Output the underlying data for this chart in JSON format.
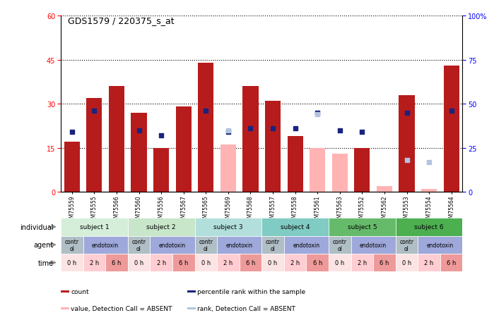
{
  "title": "GDS1579 / 220375_s_at",
  "samples": [
    "GSM75559",
    "GSM75555",
    "GSM75566",
    "GSM75560",
    "GSM75556",
    "GSM75567",
    "GSM75565",
    "GSM75569",
    "GSM75568",
    "GSM75557",
    "GSM75558",
    "GSM75561",
    "GSM75563",
    "GSM75552",
    "GSM75562",
    "GSM75553",
    "GSM75554",
    "GSM75564"
  ],
  "bar_values": [
    17,
    32,
    36,
    27,
    15,
    29,
    44,
    null,
    36,
    31,
    19,
    null,
    null,
    15,
    null,
    33,
    null,
    43
  ],
  "bar_values_absent": [
    null,
    null,
    null,
    null,
    null,
    null,
    null,
    16,
    null,
    null,
    null,
    15,
    13,
    null,
    2,
    null,
    1,
    null
  ],
  "dot_values": [
    34,
    46,
    null,
    35,
    32,
    null,
    46,
    34,
    36,
    36,
    36,
    45,
    35,
    34,
    null,
    45,
    null,
    46
  ],
  "rank_absent": [
    null,
    null,
    null,
    null,
    null,
    null,
    null,
    35,
    null,
    null,
    null,
    44,
    null,
    null,
    null,
    18,
    17,
    null
  ],
  "subjects": [
    {
      "label": "subject 1",
      "start": 0,
      "end": 3,
      "color": "#d4eeda"
    },
    {
      "label": "subject 2",
      "start": 3,
      "end": 6,
      "color": "#c8e6c9"
    },
    {
      "label": "subject 3",
      "start": 6,
      "end": 9,
      "color": "#b2dfdb"
    },
    {
      "label": "subject 4",
      "start": 9,
      "end": 12,
      "color": "#80cbc4"
    },
    {
      "label": "subject 5",
      "start": 12,
      "end": 15,
      "color": "#66bb6a"
    },
    {
      "label": "subject 6",
      "start": 15,
      "end": 18,
      "color": "#4caf50"
    }
  ],
  "agents": [
    {
      "label": "control",
      "start": 0,
      "end": 1,
      "color": "#b0bec5"
    },
    {
      "label": "endotoxin",
      "start": 1,
      "end": 3,
      "color": "#9fa8da"
    },
    {
      "label": "control",
      "start": 3,
      "end": 4,
      "color": "#b0bec5"
    },
    {
      "label": "endotoxin",
      "start": 4,
      "end": 6,
      "color": "#9fa8da"
    },
    {
      "label": "control",
      "start": 6,
      "end": 7,
      "color": "#b0bec5"
    },
    {
      "label": "endotoxin",
      "start": 7,
      "end": 9,
      "color": "#9fa8da"
    },
    {
      "label": "control",
      "start": 9,
      "end": 10,
      "color": "#b0bec5"
    },
    {
      "label": "endotoxin",
      "start": 10,
      "end": 12,
      "color": "#9fa8da"
    },
    {
      "label": "control",
      "start": 12,
      "end": 13,
      "color": "#b0bec5"
    },
    {
      "label": "endotoxin",
      "start": 13,
      "end": 15,
      "color": "#9fa8da"
    },
    {
      "label": "control",
      "start": 15,
      "end": 16,
      "color": "#b0bec5"
    },
    {
      "label": "endotoxin",
      "start": 16,
      "end": 18,
      "color": "#9fa8da"
    }
  ],
  "times": [
    "0 h",
    "2 h",
    "6 h",
    "0 h",
    "2 h",
    "6 h",
    "0 h",
    "2 h",
    "6 h",
    "0 h",
    "2 h",
    "6 h",
    "0 h",
    "2 h",
    "6 h",
    "0 h",
    "2 h",
    "6 h"
  ],
  "time_colors": [
    "#fce4e4",
    "#ffcdd2",
    "#ef9a9a",
    "#fce4e4",
    "#ffcdd2",
    "#ef9a9a",
    "#fce4e4",
    "#ffcdd2",
    "#ef9a9a",
    "#fce4e4",
    "#ffcdd2",
    "#ef9a9a",
    "#fce4e4",
    "#ffcdd2",
    "#ef9a9a",
    "#fce4e4",
    "#ffcdd2",
    "#ef9a9a"
  ],
  "ylim_left": [
    0,
    60
  ],
  "ylim_right": [
    0,
    100
  ],
  "yticks_left": [
    0,
    15,
    30,
    45,
    60
  ],
  "yticks_right": [
    0,
    25,
    50,
    75,
    100
  ],
  "bar_color": "#b71c1c",
  "bar_absent_color": "#ffb3b3",
  "dot_color": "#1a237e",
  "rank_absent_color": "#b0c4de",
  "legend_items": [
    {
      "label": "count",
      "color": "#b71c1c"
    },
    {
      "label": "percentile rank within the sample",
      "color": "#1a237e"
    },
    {
      "label": "value, Detection Call = ABSENT",
      "color": "#ffb3b3"
    },
    {
      "label": "rank, Detection Call = ABSENT",
      "color": "#b0c4de"
    }
  ]
}
